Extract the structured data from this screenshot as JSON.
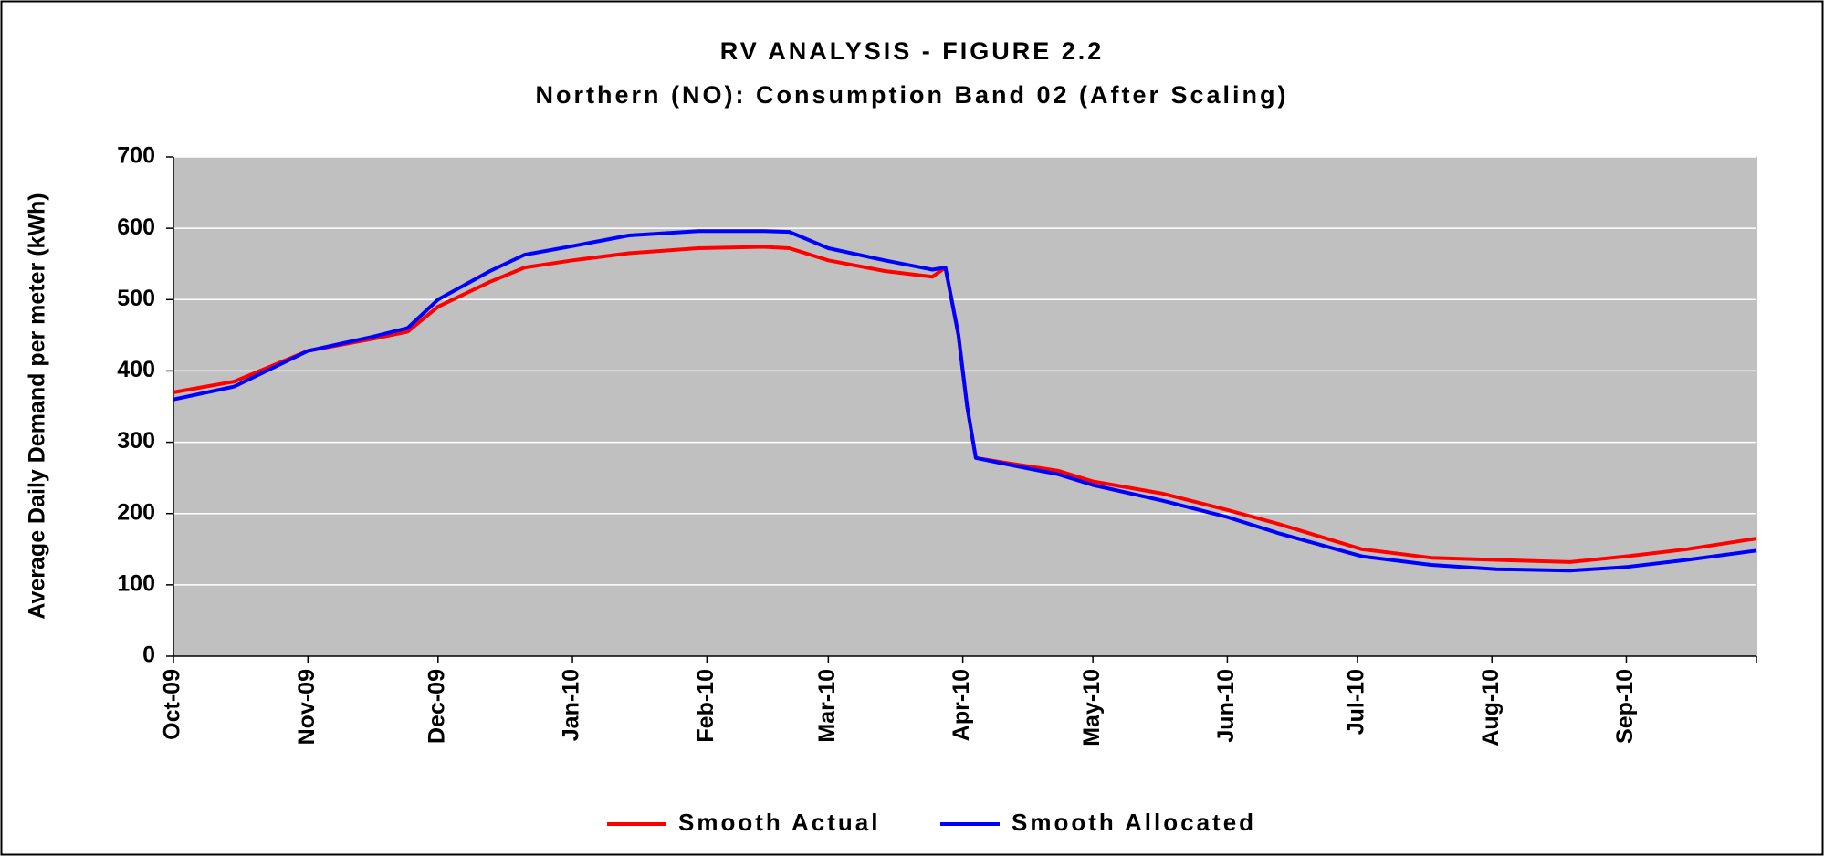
{
  "chart_data": {
    "type": "line",
    "title": "RV ANALYSIS - FIGURE 2.2",
    "subtitle": "Northern (NO): Consumption Band 02 (After Scaling)",
    "y_label": "Average Daily Demand per meter (kWh)",
    "x": [
      0,
      14,
      31,
      46,
      54,
      61,
      73,
      81,
      92,
      105,
      121,
      136,
      142,
      151,
      164,
      175,
      178,
      181,
      182,
      183,
      185,
      193,
      204,
      212,
      228,
      243,
      255,
      274,
      290,
      305,
      322,
      335,
      349,
      365
    ],
    "series": [
      {
        "name": "Smooth Actual",
        "color": "#ff0000",
        "values": [
          370,
          385,
          428,
          445,
          455,
          490,
          525,
          545,
          555,
          565,
          572,
          574,
          572,
          555,
          540,
          532,
          545,
          450,
          400,
          350,
          278,
          270,
          260,
          245,
          228,
          205,
          185,
          150,
          138,
          135,
          132,
          140,
          150,
          165
        ]
      },
      {
        "name": "Smooth Allocated",
        "color": "#0000ff",
        "values": [
          360,
          378,
          428,
          448,
          460,
          500,
          540,
          563,
          575,
          590,
          596,
          596,
          595,
          572,
          555,
          542,
          545,
          450,
          400,
          350,
          278,
          268,
          255,
          240,
          218,
          195,
          172,
          140,
          128,
          122,
          120,
          125,
          135,
          148
        ]
      }
    ],
    "xlim": [
      0,
      365
    ],
    "xticks": [
      {
        "value": 0,
        "label": "Oct-09"
      },
      {
        "value": 31,
        "label": "Nov-09"
      },
      {
        "value": 61,
        "label": "Dec-09"
      },
      {
        "value": 92,
        "label": "Jan-10"
      },
      {
        "value": 123,
        "label": "Feb-10"
      },
      {
        "value": 151,
        "label": "Mar-10"
      },
      {
        "value": 182,
        "label": "Apr-10"
      },
      {
        "value": 212,
        "label": "May-10"
      },
      {
        "value": 243,
        "label": "Jun-10"
      },
      {
        "value": 273,
        "label": "Jul-10"
      },
      {
        "value": 304,
        "label": "Aug-10"
      },
      {
        "value": 335,
        "label": "Sep-10"
      }
    ],
    "ylim": [
      0,
      700
    ],
    "yticks": [
      0,
      100,
      200,
      300,
      400,
      500,
      600,
      700
    ],
    "grid": true,
    "plot_background": "#c0c0c0",
    "legend": "bottom"
  }
}
